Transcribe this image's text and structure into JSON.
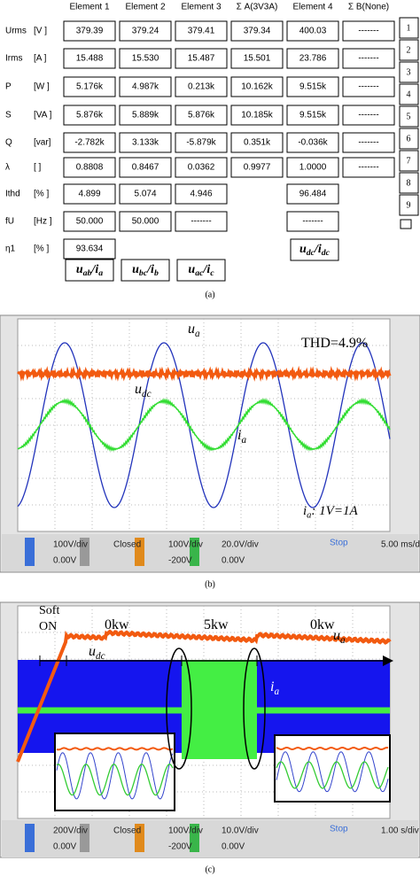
{
  "table": {
    "headers": [
      "Element 1",
      "Element 2",
      "Element 3",
      "Σ A(3V3A)",
      "Element 4",
      "Σ B(None)"
    ],
    "rows": [
      {
        "name": "Urms",
        "unit": "[V  ]",
        "cells": [
          "379.39",
          "379.24",
          "379.41",
          "379.34",
          "400.03",
          "-------"
        ]
      },
      {
        "name": "Irms",
        "unit": "[A  ]",
        "cells": [
          "15.488",
          "15.530",
          "15.487",
          "15.501",
          "23.786",
          "-------"
        ]
      },
      {
        "name": "P",
        "unit": "[W  ]",
        "cells": [
          "5.176k",
          "4.987k",
          "0.213k",
          "10.162k",
          "9.515k",
          "-------"
        ]
      },
      {
        "name": "S",
        "unit": "[VA ]",
        "cells": [
          "5.876k",
          "5.889k",
          "5.876k",
          "10.185k",
          "9.515k",
          "-------"
        ]
      },
      {
        "name": "Q",
        "unit": "[var]",
        "cells": [
          "-2.782k",
          "3.133k",
          "-5.879k",
          "0.351k",
          "-0.036k",
          "-------"
        ]
      },
      {
        "name": "λ",
        "unit": "[   ]",
        "cells": [
          "0.8808",
          "0.8467",
          "0.0362",
          "0.9977",
          "1.0000",
          "-------"
        ]
      },
      {
        "name": "Ithd",
        "unit": "[%  ]",
        "cells": [
          "4.899",
          "5.074",
          "4.946",
          null,
          "96.484",
          null
        ]
      },
      {
        "name": "fU",
        "unit": "[Hz ]",
        "cells": [
          "50.000",
          "50.000",
          "-------",
          null,
          "-------",
          null
        ]
      },
      {
        "name": "η1",
        "unit": "[%  ]",
        "cells": [
          "93.634",
          null,
          null,
          null,
          null,
          null
        ]
      }
    ],
    "tabs": [
      "1",
      "2",
      "3",
      "4",
      "5",
      "6",
      "7",
      "8",
      "9"
    ],
    "pair_labels": [
      [
        "u",
        "ab",
        "/i",
        "a"
      ],
      [
        "u",
        "bc",
        "/i",
        "b"
      ],
      [
        "u",
        "ac",
        "/i",
        "c"
      ],
      [
        "u",
        "dc",
        "/i",
        "dc"
      ]
    ],
    "caption": "(a)"
  },
  "scope_b": {
    "labels": {
      "u_a": [
        "u",
        "a"
      ],
      "u_dc": [
        "u",
        "dc"
      ],
      "i_a": [
        "i",
        "a"
      ],
      "thd": [
        "THD=4.9%"
      ],
      "scale": [
        "i",
        "a",
        ": 1V=1A"
      ]
    },
    "status": [
      "100V/div",
      "0.00V",
      "Closed",
      "100V/div",
      "-200V",
      "20.0V/div",
      "0.00V",
      "Stop",
      "5.00 ms/div"
    ],
    "caption": "(b)"
  },
  "scope_c": {
    "labels": {
      "soft": [
        "Soft"
      ],
      "on": [
        "ON"
      ],
      "p1": [
        "0kw"
      ],
      "p2": [
        "5kw"
      ],
      "p3": [
        "0kw"
      ],
      "u_a": [
        "u",
        "a"
      ],
      "u_dc": [
        "u",
        "dc"
      ],
      "i_a": [
        "i",
        "a"
      ]
    },
    "status": [
      "200V/div",
      "0.00V",
      "Closed",
      "100V/div",
      "-200V",
      "10.0V/div",
      "0.00V",
      "Stop",
      "1.00 s/div"
    ],
    "caption": "(c)"
  }
}
